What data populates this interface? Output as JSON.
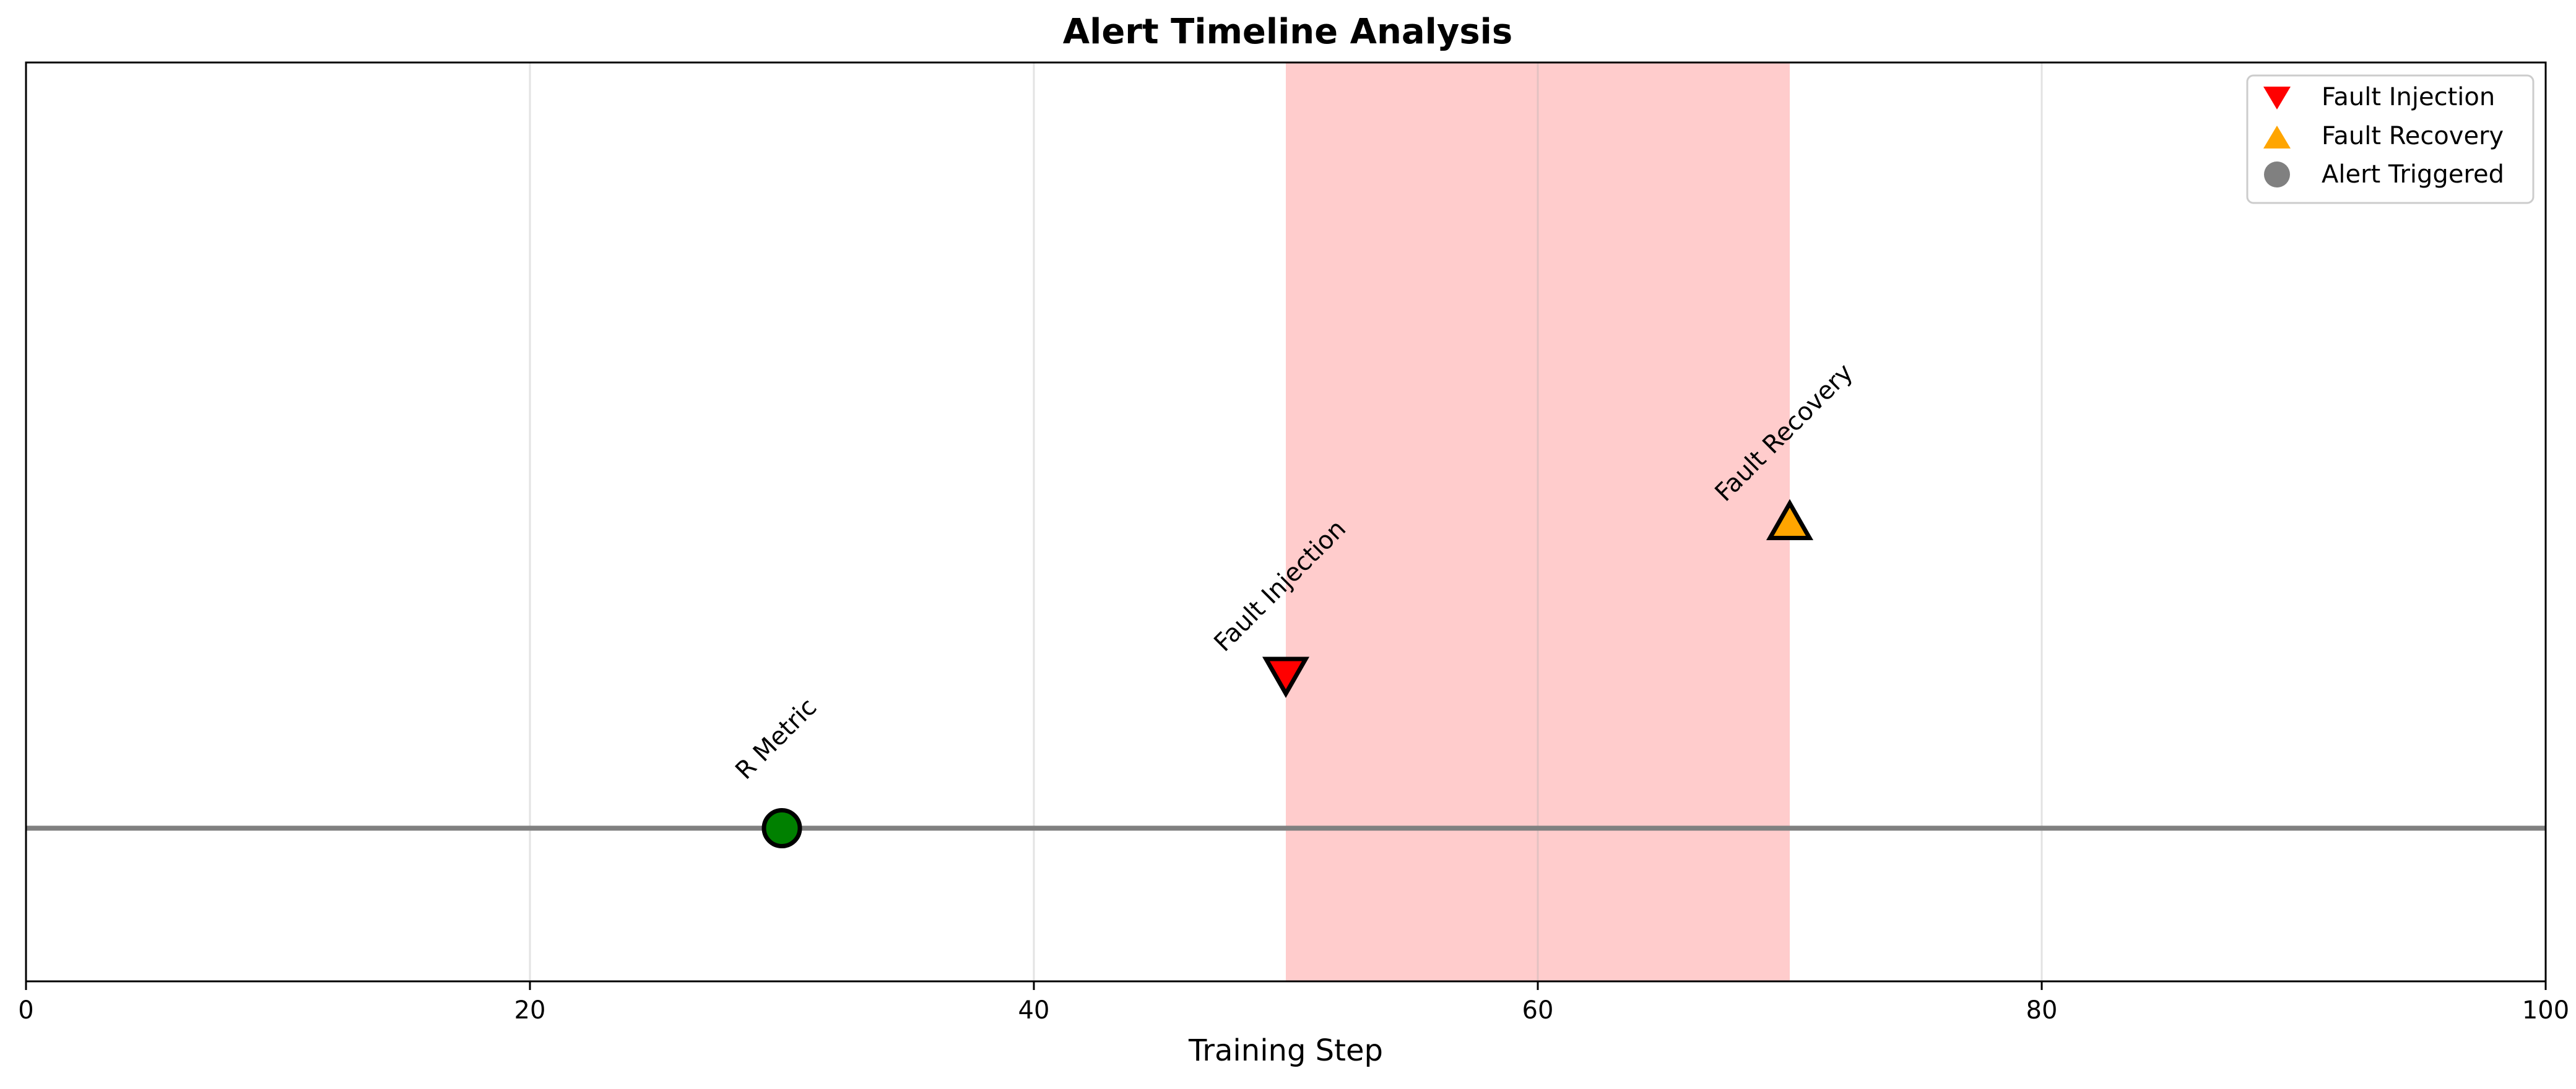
{
  "chart_data": {
    "type": "scatter",
    "title": "Alert Timeline Analysis",
    "xlabel": "Training Step",
    "ylabel": "",
    "xlim": [
      0,
      100
    ],
    "ylim": [
      -0.5,
      2.5
    ],
    "xticks": [
      "0",
      "20",
      "40",
      "60",
      "80",
      "100"
    ],
    "grid": "vertical",
    "baseline_y": 0,
    "shaded_region": {
      "x_start": 50,
      "x_end": 70,
      "color": "#ffcccc"
    },
    "legend": {
      "placement": "top-right",
      "entries": [
        {
          "label": "Fault Injection",
          "marker": "triangle-down",
          "color": "#ff0000"
        },
        {
          "label": "Fault Recovery",
          "marker": "triangle-up",
          "color": "#ffa500"
        },
        {
          "label": "Alert Triggered",
          "marker": "circle",
          "color": "#808080"
        }
      ]
    },
    "events": [
      {
        "x": 30,
        "y": 0,
        "label": "R Metric",
        "marker": "circle",
        "color": "#008000"
      },
      {
        "x": 50,
        "y": 0.5,
        "label": "Fault Injection",
        "marker": "triangle-down",
        "color": "#ff0000"
      },
      {
        "x": 70,
        "y": 1.0,
        "label": "Fault Recovery",
        "marker": "triangle-up",
        "color": "#ffa500"
      }
    ]
  }
}
